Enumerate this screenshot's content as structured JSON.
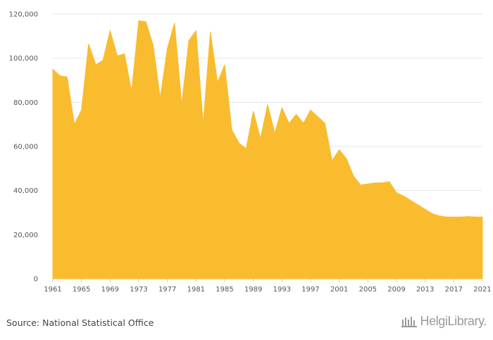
{
  "chart_data": {
    "type": "area",
    "title": "",
    "xlabel": "",
    "ylabel": "",
    "xlim": [
      1961,
      2021
    ],
    "ylim": [
      0,
      120000
    ],
    "y_ticks": [
      0,
      20000,
      40000,
      60000,
      80000,
      100000,
      120000
    ],
    "y_tick_labels": [
      "0",
      "20,000",
      "40,000",
      "60,000",
      "80,000",
      "100,000",
      "120,000"
    ],
    "x_ticks": [
      1961,
      1965,
      1969,
      1973,
      1977,
      1981,
      1985,
      1989,
      1993,
      1997,
      2001,
      2005,
      2009,
      2013,
      2017,
      2021
    ],
    "x_tick_labels": [
      "1961",
      "1965",
      "1969",
      "1973",
      "1977",
      "1981",
      "1985",
      "1989",
      "1993",
      "1997",
      "2001",
      "2005",
      "2009",
      "2013",
      "2017",
      "2021"
    ],
    "grid": true,
    "color": "#f9bc2f",
    "x": [
      1961,
      1962,
      1963,
      1964,
      1965,
      1966,
      1967,
      1968,
      1969,
      1970,
      1971,
      1972,
      1973,
      1974,
      1975,
      1976,
      1977,
      1978,
      1979,
      1980,
      1981,
      1982,
      1983,
      1984,
      1985,
      1986,
      1987,
      1988,
      1989,
      1990,
      1991,
      1992,
      1993,
      1994,
      1995,
      1996,
      1997,
      1998,
      1999,
      2000,
      2001,
      2002,
      2003,
      2004,
      2005,
      2006,
      2007,
      2008,
      2009,
      2010,
      2011,
      2012,
      2013,
      2014,
      2015,
      2016,
      2017,
      2018,
      2019,
      2020,
      2021
    ],
    "values": [
      95000,
      92000,
      91500,
      70000,
      76500,
      106500,
      97000,
      99000,
      112500,
      101000,
      102000,
      85000,
      117000,
      116500,
      106000,
      82000,
      104500,
      116000,
      79000,
      108000,
      112500,
      70000,
      112000,
      89000,
      97000,
      67500,
      61500,
      59000,
      76000,
      63500,
      79000,
      66000,
      77500,
      70500,
      74500,
      70500,
      76500,
      73500,
      70500,
      53500,
      58500,
      54500,
      46500,
      42500,
      43000,
      43500,
      43500,
      44000,
      39000,
      37500,
      35500,
      33500,
      31500,
      29500,
      28500,
      28000,
      28000,
      28000,
      28200,
      28000,
      28000
    ]
  },
  "footer": {
    "source": "Source: National Statistical Office",
    "brand": "HelgiLibrary."
  },
  "colors": {
    "area": "#f9bc2f",
    "grid": "#e6e6e6",
    "axis_text": "#555555"
  }
}
